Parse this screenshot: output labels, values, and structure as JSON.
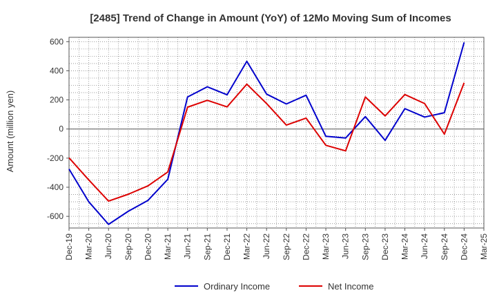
{
  "chart_data": {
    "type": "line",
    "title": "[2485]  Trend of Change in Amount (YoY) of 12Mo Moving Sum of Incomes",
    "xlabel": "",
    "ylabel": "Amount (million yen)",
    "ylim": [
      -680,
      630
    ],
    "yticks": [
      600,
      400,
      200,
      0,
      -200,
      -400,
      -600
    ],
    "ytick_labels": [
      "600",
      "400",
      "200",
      "0",
      "-200",
      "-400",
      "-600"
    ],
    "categories": [
      "Dec-19",
      "Mar-20",
      "Jun-20",
      "Sep-20",
      "Dec-20",
      "Mar-21",
      "Jun-21",
      "Sep-21",
      "Dec-21",
      "Mar-22",
      "Jun-22",
      "Sep-22",
      "Dec-22",
      "Mar-23",
      "Jun-23",
      "Sep-23",
      "Dec-23",
      "Mar-24",
      "Jun-24",
      "Sep-24",
      "Dec-24",
      "Mar-25"
    ],
    "grid": true,
    "legend_position": "bottom-center",
    "series": [
      {
        "name": "Ordinary Income",
        "color": "#0000cc",
        "values": [
          -275,
          -500,
          -655,
          -565,
          -490,
          -345,
          220,
          290,
          235,
          465,
          240,
          172,
          232,
          -50,
          -62,
          85,
          -78,
          140,
          82,
          112,
          595,
          null
        ]
      },
      {
        "name": "Net Income",
        "color": "#dd0000",
        "values": [
          -198,
          -350,
          -495,
          -448,
          -390,
          -295,
          150,
          197,
          152,
          308,
          175,
          27,
          75,
          -112,
          -150,
          220,
          90,
          237,
          175,
          -35,
          318,
          null
        ]
      }
    ]
  }
}
